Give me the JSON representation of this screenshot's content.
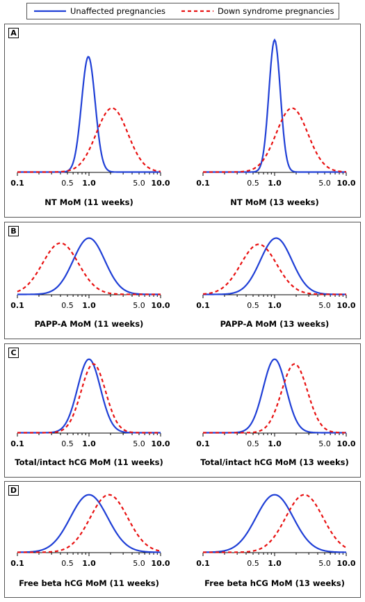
{
  "legend": {
    "unaffected": "Unaffected pregnancies",
    "down": "Down syndrome pregnancies"
  },
  "colors": {
    "unaffected": "#1f3fd6",
    "down": "#e81010"
  },
  "panels": [
    {
      "letter": "A"
    },
    {
      "letter": "B"
    },
    {
      "letter": "C"
    },
    {
      "letter": "D"
    }
  ],
  "chart_data": [
    {
      "panel": "A",
      "type": "line",
      "xlabel": "NT MoM (11 weeks)",
      "xscale": "log",
      "xticks": [
        "0.1",
        "0.5",
        "1.0",
        "5.0",
        "10.0"
      ],
      "xlim": [
        0.1,
        10
      ],
      "series": [
        {
          "name": "Unaffected pregnancies",
          "peak_x": 0.98,
          "sd_log10": 0.095,
          "rel_height": 0.83
        },
        {
          "name": "Down syndrome pregnancies",
          "peak_x": 2.1,
          "sd_log10": 0.22,
          "rel_height": 0.46
        }
      ]
    },
    {
      "panel": "A",
      "type": "line",
      "xlabel": "NT MoM (13 weeks)",
      "xscale": "log",
      "xticks": [
        "0.1",
        "0.5",
        "1.0",
        "5.0",
        "10.0"
      ],
      "xlim": [
        0.1,
        10
      ],
      "series": [
        {
          "name": "Unaffected pregnancies",
          "peak_x": 1.0,
          "sd_log10": 0.08,
          "rel_height": 0.95
        },
        {
          "name": "Down syndrome pregnancies",
          "peak_x": 1.75,
          "sd_log10": 0.22,
          "rel_height": 0.46
        }
      ]
    },
    {
      "panel": "B",
      "type": "line",
      "xlabel": "PAPP-A MoM (11 weeks)",
      "xscale": "log",
      "xticks": [
        "0.1",
        "0.5",
        "1.0",
        "5.0",
        "10.0"
      ],
      "xlim": [
        0.1,
        10
      ],
      "series": [
        {
          "name": "Unaffected pregnancies",
          "peak_x": 1.0,
          "sd_log10": 0.22,
          "rel_height": 0.9
        },
        {
          "name": "Down syndrome pregnancies",
          "peak_x": 0.4,
          "sd_log10": 0.25,
          "rel_height": 0.82
        }
      ]
    },
    {
      "panel": "B",
      "type": "line",
      "xlabel": "PAPP-A MoM (13 weeks)",
      "xscale": "log",
      "xticks": [
        "0.1",
        "0.5",
        "1.0",
        "5.0",
        "10.0"
      ],
      "xlim": [
        0.1,
        10
      ],
      "series": [
        {
          "name": "Unaffected pregnancies",
          "peak_x": 1.05,
          "sd_log10": 0.22,
          "rel_height": 0.9
        },
        {
          "name": "Down syndrome pregnancies",
          "peak_x": 0.6,
          "sd_log10": 0.25,
          "rel_height": 0.8
        }
      ]
    },
    {
      "panel": "C",
      "type": "line",
      "xlabel": "Total/intact hCG MoM (11 weeks)",
      "xscale": "log",
      "xticks": [
        "0.1",
        "0.5",
        "1.0",
        "5.0",
        "10.0"
      ],
      "xlim": [
        0.1,
        10
      ],
      "series": [
        {
          "name": "Unaffected pregnancies",
          "peak_x": 1.0,
          "sd_log10": 0.16,
          "rel_height": 0.92
        },
        {
          "name": "Down syndrome pregnancies",
          "peak_x": 1.15,
          "sd_log10": 0.17,
          "rel_height": 0.86
        }
      ]
    },
    {
      "panel": "C",
      "type": "line",
      "xlabel": "Total/intact hCG MoM (13 weeks)",
      "xscale": "log",
      "xticks": [
        "0.1",
        "0.5",
        "1.0",
        "5.0",
        "10.0"
      ],
      "xlim": [
        0.1,
        10
      ],
      "series": [
        {
          "name": "Unaffected pregnancies",
          "peak_x": 1.0,
          "sd_log10": 0.16,
          "rel_height": 0.92
        },
        {
          "name": "Down syndrome pregnancies",
          "peak_x": 1.9,
          "sd_log10": 0.18,
          "rel_height": 0.86
        }
      ]
    },
    {
      "panel": "D",
      "type": "line",
      "xlabel": "Free beta hCG MoM (11 weeks)",
      "xscale": "log",
      "xticks": [
        "0.1",
        "0.5",
        "1.0",
        "5.0",
        "10.0"
      ],
      "xlim": [
        0.1,
        10
      ],
      "series": [
        {
          "name": "Unaffected pregnancies",
          "peak_x": 1.0,
          "sd_log10": 0.26,
          "rel_height": 0.92
        },
        {
          "name": "Down syndrome pregnancies",
          "peak_x": 1.9,
          "sd_log10": 0.26,
          "rel_height": 0.92
        }
      ]
    },
    {
      "panel": "D",
      "type": "line",
      "xlabel": "Free beta hCG MoM (13 weeks)",
      "xscale": "log",
      "xticks": [
        "0.1",
        "0.5",
        "1.0",
        "5.0",
        "10.0"
      ],
      "xlim": [
        0.1,
        10
      ],
      "series": [
        {
          "name": "Unaffected pregnancies",
          "peak_x": 1.0,
          "sd_log10": 0.26,
          "rel_height": 0.92
        },
        {
          "name": "Down syndrome pregnancies",
          "peak_x": 2.6,
          "sd_log10": 0.26,
          "rel_height": 0.92
        }
      ]
    }
  ]
}
